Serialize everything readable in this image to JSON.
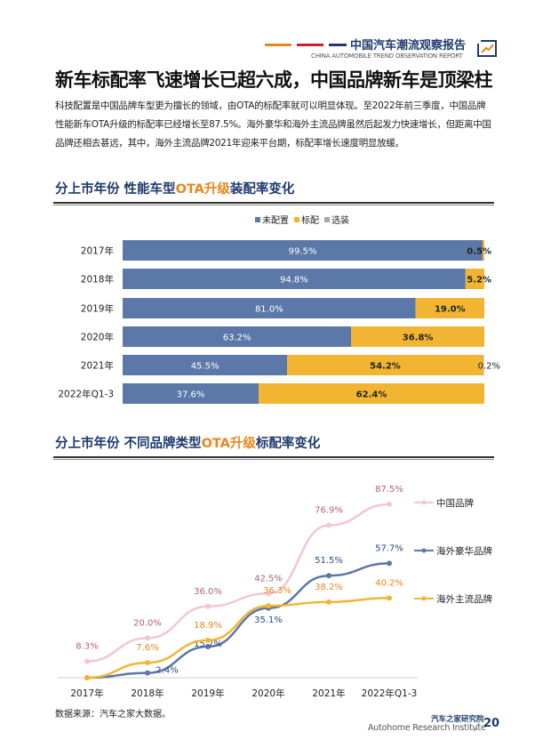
{
  "header": {
    "brand_cn": "中国汽车潮流观察报告",
    "brand_en": "CHINA AUTOMOBILE TREND OBSERVATION REPORT",
    "stripe_colors": [
      "#e8861c",
      "#c8202f",
      "#1f3a6e"
    ]
  },
  "title": "新车标配率飞速增长已超六成，中国品牌新车是顶梁柱",
  "body": "科技配置是中国品牌车型更为擅长的领域，由OTA的标配率就可以明显体现。至2022年前三季度，中国品牌性能新车OTA升级的标配率已经增长至87.5%。海外豪华和海外主流品牌虽然后起发力快速增长，但距离中国品牌还相去甚远，其中，海外主流品牌2021年迎来平台期，标配率增长速度明显放缓。",
  "section1": {
    "pre": "分上市年份  性能车型",
    "hl": "OTA升级",
    "post": "装配率变化"
  },
  "section2": {
    "pre": "分上市年份  不同品牌类型",
    "hl": "OTA升级",
    "post": "标配率变化"
  },
  "chart_data": [
    {
      "type": "bar",
      "orientation": "horizontal",
      "stacked": "100%",
      "legend_position": "top",
      "categories": [
        "2017年",
        "2018年",
        "2019年",
        "2020年",
        "2021年",
        "2022年Q1-3"
      ],
      "series": [
        {
          "name": "未配置",
          "color": "#5b78a8",
          "values": [
            99.5,
            94.8,
            81.0,
            63.2,
            45.5,
            37.6
          ],
          "labels": [
            "99.5%",
            "94.8%",
            "81.0%",
            "63.2%",
            "45.5%",
            "37.6%"
          ]
        },
        {
          "name": "标配",
          "color": "#f2b531",
          "values": [
            0.5,
            5.2,
            19.0,
            36.8,
            54.2,
            62.4
          ],
          "labels": [
            "0.5%",
            "5.2%",
            "19.0%",
            "36.8%",
            "54.2%",
            "62.4%"
          ]
        },
        {
          "name": "选装",
          "color": "#a6a6a6",
          "values": [
            0,
            0,
            0,
            0,
            0.2,
            0
          ],
          "labels": [
            "",
            "",
            "",
            "",
            "0.2%",
            ""
          ]
        }
      ]
    },
    {
      "type": "line",
      "legend_position": "right",
      "ylim": [
        0,
        87.5
      ],
      "categories": [
        "2017年",
        "2018年",
        "2019年",
        "2020年",
        "2021年",
        "2022年Q1-3"
      ],
      "series": [
        {
          "name": "中国品牌",
          "color": "#f4c6cf",
          "label_color": "#b0607a",
          "values": [
            8.3,
            20.0,
            36.0,
            42.5,
            76.9,
            87.5
          ],
          "labels": [
            "8.3%",
            "20.0%",
            "36.0%",
            "42.5%",
            "76.9%",
            "87.5%"
          ]
        },
        {
          "name": "海外豪华品牌",
          "color": "#5b78a8",
          "label_color": "#2c4a80",
          "values": [
            0,
            2.4,
            15.7,
            35.1,
            51.5,
            57.7
          ],
          "labels": [
            "",
            "2.4%",
            "15.7%",
            "35.1%",
            "51.5%",
            "57.7%"
          ]
        },
        {
          "name": "海外主流品牌",
          "color": "#f2b531",
          "label_color": "#e8861c",
          "values": [
            0,
            7.6,
            18.9,
            36.3,
            38.2,
            40.2
          ],
          "labels": [
            "",
            "7.6%",
            "18.9%",
            "36.3%",
            "38.2%",
            "40.2%"
          ]
        }
      ]
    }
  ],
  "source": "数据来源：汽车之家大数据。",
  "footer": {
    "cn": "汽车之家研究院",
    "en": "Autohome Research Institute",
    "page": "20"
  }
}
